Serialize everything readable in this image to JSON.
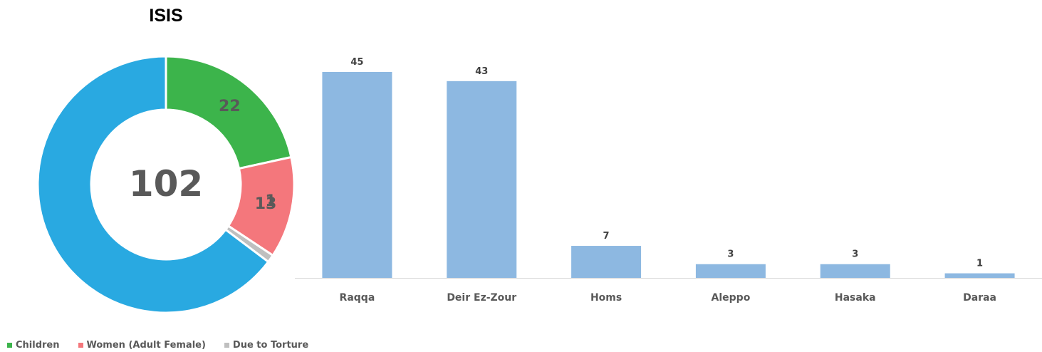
{
  "chart_data": [
    {
      "type": "pie",
      "variant": "donut",
      "title": "ISIS",
      "center_label": "102",
      "slices": [
        {
          "name": "Children",
          "value": 22,
          "color": "#3CB44B",
          "label": "22"
        },
        {
          "name": "Women (Adult Female)",
          "value": 13,
          "color": "#F4777C",
          "label": "13"
        },
        {
          "name": "Due to Torture",
          "value": 1,
          "color": "#BFBFBF",
          "label": "1"
        },
        {
          "name": "",
          "value": 66,
          "color": "#29A9E1",
          "label": ""
        }
      ],
      "legend": {
        "placement": "bottom-left",
        "items": [
          {
            "name": "Children",
            "color": "#3CB44B"
          },
          {
            "name": "Women (Adult Female)",
            "color": "#F4777C"
          },
          {
            "name": "Due to Torture",
            "color": "#BFBFBF"
          }
        ]
      }
    },
    {
      "type": "bar",
      "categories": [
        "Raqqa",
        "Deir Ez-Zour",
        "Homs",
        "Aleppo",
        "Hasaka",
        "Daraa"
      ],
      "values": [
        45,
        43,
        7,
        3,
        3,
        1
      ],
      "data_labels": [
        "45",
        "43",
        "7",
        "3",
        "3",
        "1"
      ],
      "bar_color": "#8DB8E1",
      "ylim": [
        0,
        45
      ],
      "grid": false
    }
  ]
}
